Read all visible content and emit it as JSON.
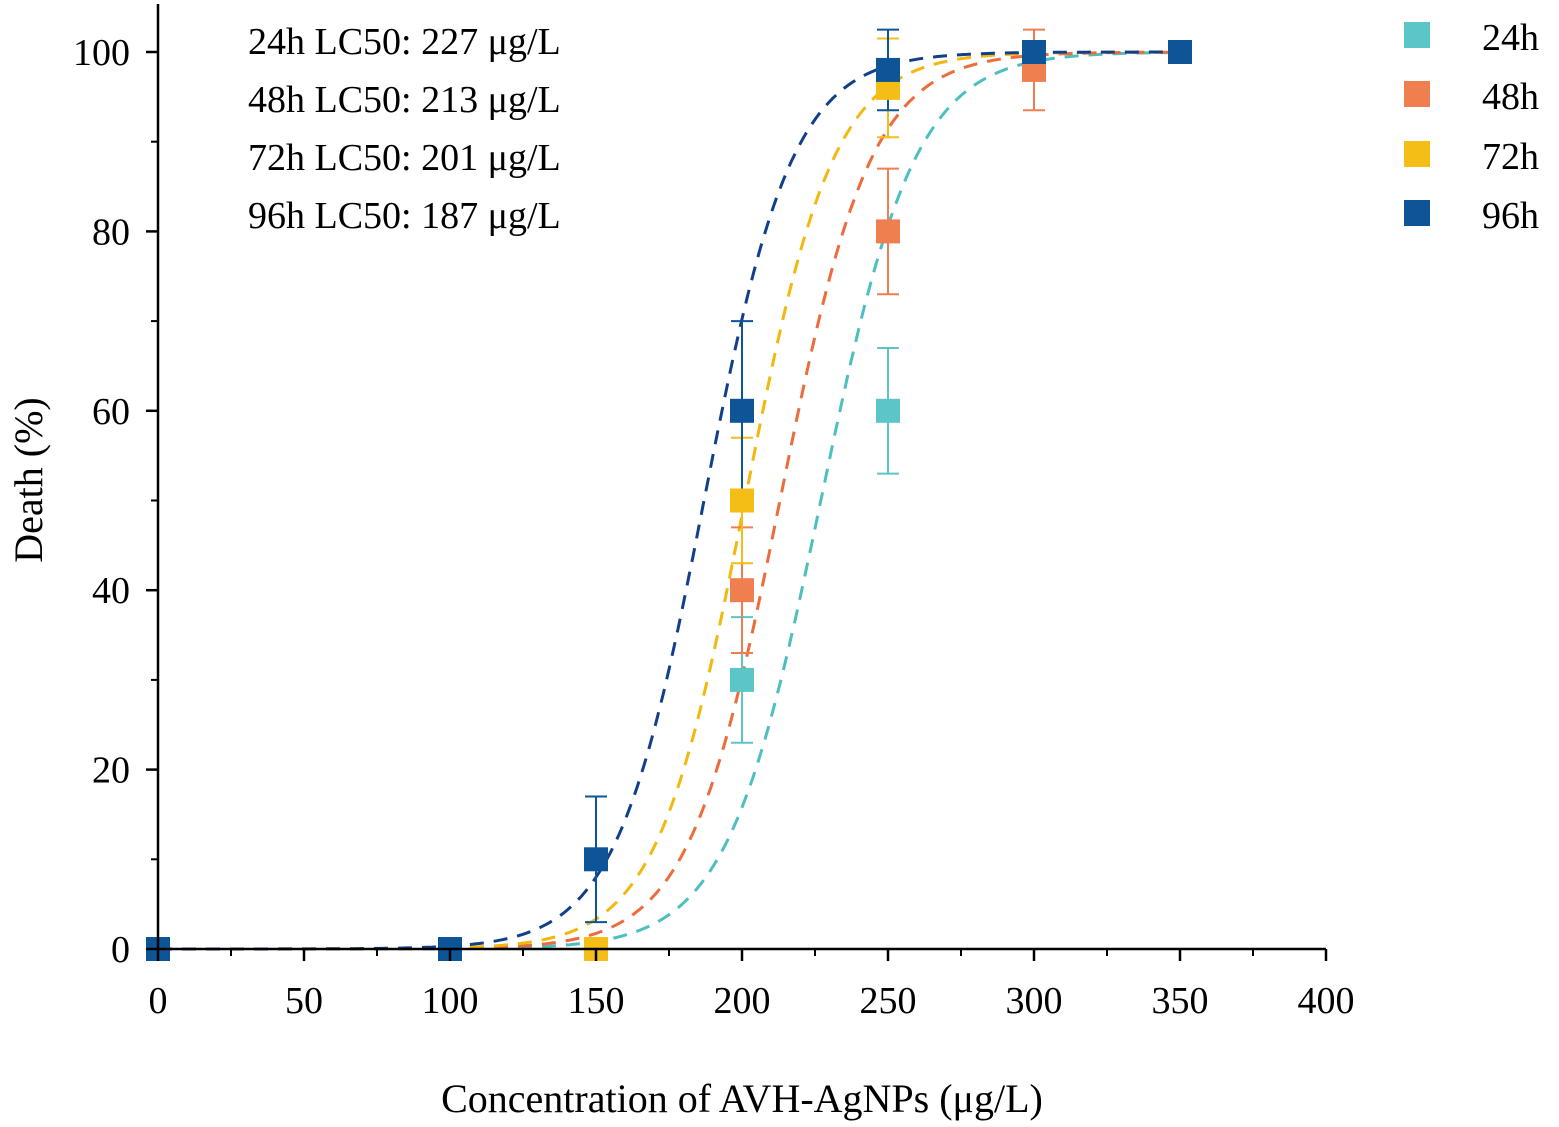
{
  "chart_data": {
    "type": "scatter",
    "xlabel": "Concentration of AVH-AgNPs (μg/L)",
    "ylabel": "Death (%)",
    "xlim": [
      0,
      400
    ],
    "ylim": [
      0,
      100
    ],
    "x_ticks": [
      0,
      50,
      100,
      150,
      200,
      250,
      300,
      350,
      400
    ],
    "y_ticks": [
      0,
      20,
      40,
      60,
      80,
      100
    ],
    "x_tick_labels": [
      "0",
      "50",
      "100",
      "150",
      "200",
      "250",
      "300",
      "350",
      "400"
    ],
    "y_tick_labels": [
      "0",
      "20",
      "40",
      "60",
      "80",
      "100"
    ],
    "grid": false,
    "legend_position": "top-right (outside plot)",
    "annotations": [
      "24h LC50: 227 μg/L",
      "48h LC50: 213 μg/L",
      "72h LC50: 201 μg/L",
      "96h LC50: 187 μg/L"
    ],
    "series": [
      {
        "name": "24h",
        "color": "#5BC5C8",
        "curve_color": "#4DBFC1",
        "lc50": 227,
        "slope_k": 0.062,
        "points": [
          {
            "x": 0,
            "y": 0,
            "err": 0
          },
          {
            "x": 100,
            "y": 0,
            "err": 0
          },
          {
            "x": 150,
            "y": 0,
            "err": 0
          },
          {
            "x": 200,
            "y": 30,
            "err": 7
          },
          {
            "x": 250,
            "y": 60,
            "err": 7
          },
          {
            "x": 300,
            "y": 100,
            "err": 0
          },
          {
            "x": 350,
            "y": 100,
            "err": 0
          }
        ]
      },
      {
        "name": "48h",
        "color": "#F07F50",
        "curve_color": "#EE6B3C",
        "lc50": 213,
        "slope_k": 0.064,
        "points": [
          {
            "x": 0,
            "y": 0,
            "err": 0
          },
          {
            "x": 100,
            "y": 0,
            "err": 0
          },
          {
            "x": 150,
            "y": 0,
            "err": 0
          },
          {
            "x": 200,
            "y": 40,
            "err": 7
          },
          {
            "x": 250,
            "y": 80,
            "err": 7
          },
          {
            "x": 300,
            "y": 98,
            "err": 4.5
          },
          {
            "x": 350,
            "y": 100,
            "err": 0
          }
        ]
      },
      {
        "name": "72h",
        "color": "#F5BE16",
        "curve_color": "#F3B80E",
        "lc50": 201,
        "slope_k": 0.066,
        "points": [
          {
            "x": 0,
            "y": 0,
            "err": 0
          },
          {
            "x": 100,
            "y": 0,
            "err": 0
          },
          {
            "x": 150,
            "y": 0,
            "err": 0
          },
          {
            "x": 200,
            "y": 50,
            "err": 7
          },
          {
            "x": 250,
            "y": 96,
            "err": 5.5
          },
          {
            "x": 300,
            "y": 100,
            "err": 0
          },
          {
            "x": 350,
            "y": 100,
            "err": 0
          }
        ]
      },
      {
        "name": "96h",
        "color": "#0E5597",
        "curve_color": "#123F8A",
        "lc50": 187,
        "slope_k": 0.066,
        "points": [
          {
            "x": 0,
            "y": 0,
            "err": 0
          },
          {
            "x": 100,
            "y": 0,
            "err": 0
          },
          {
            "x": 150,
            "y": 10,
            "err": 7
          },
          {
            "x": 200,
            "y": 60,
            "err": 10
          },
          {
            "x": 250,
            "y": 98,
            "err": 4.5
          },
          {
            "x": 300,
            "y": 100,
            "err": 0
          },
          {
            "x": 350,
            "y": 100,
            "err": 0
          }
        ]
      }
    ]
  }
}
